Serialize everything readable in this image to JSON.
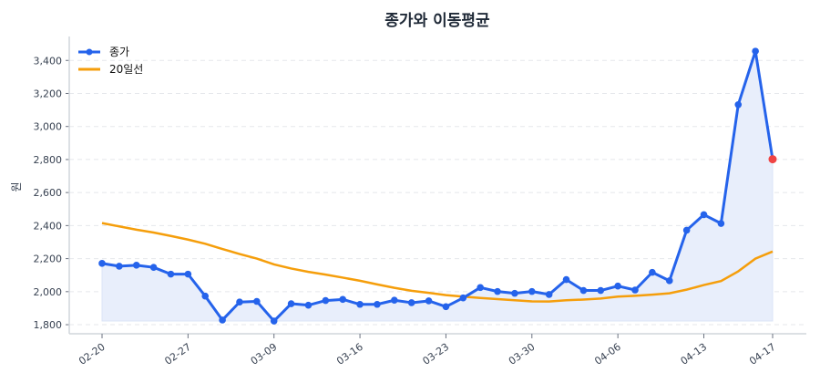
{
  "chart_data": {
    "type": "line",
    "title": "종가와 이동평균",
    "ylabel": "원",
    "xlabel": "",
    "ylim": [
      1745,
      3545
    ],
    "yticks": [
      1800,
      2000,
      2200,
      2400,
      2600,
      2800,
      3000,
      3200,
      3400
    ],
    "ytick_labels": [
      "1,800",
      "2,000",
      "2,200",
      "2,400",
      "2,600",
      "2,800",
      "3,000",
      "3,200",
      "3,400"
    ],
    "xtick_labels": [
      "02-20",
      "02-27",
      "03-09",
      "03-16",
      "03-23",
      "03-30",
      "04-06",
      "04-13",
      "04-17"
    ],
    "x": [
      "02-20",
      "02-23",
      "02-24",
      "02-25",
      "02-26",
      "02-27",
      "03-03",
      "03-04",
      "03-05",
      "03-06",
      "03-09",
      "03-10",
      "03-11",
      "03-12",
      "03-13",
      "03-16",
      "03-17",
      "03-18",
      "03-19",
      "03-20",
      "03-23",
      "03-24",
      "03-25",
      "03-26",
      "03-27",
      "03-30",
      "03-31",
      "04-01",
      "04-02",
      "04-03",
      "04-06",
      "04-07",
      "04-08",
      "04-09",
      "04-10",
      "04-13",
      "04-14",
      "04-15",
      "04-16",
      "04-17"
    ],
    "grid": "horizontal dashed",
    "legend": "top-left",
    "series": [
      {
        "name": "종가",
        "color": "#2563eb",
        "marker": "circle",
        "fill": "#e8eefb",
        "last_point_color": "#ef4444",
        "values": [
          2171,
          2154,
          2160,
          2147,
          2106,
          2106,
          1973,
          1828,
          1937,
          1941,
          1822,
          1927,
          1918,
          1946,
          1953,
          1923,
          1923,
          1948,
          1933,
          1944,
          1909,
          1962,
          2025,
          2001,
          1990,
          2001,
          1983,
          2073,
          2007,
          2007,
          2034,
          2010,
          2117,
          2066,
          2372,
          2466,
          2413,
          3132,
          3456,
          2802
        ]
      },
      {
        "name": "20일선",
        "color": "#f59e0b",
        "values": [
          2415,
          2395,
          2375,
          2358,
          2337,
          2315,
          2290,
          2258,
          2228,
          2200,
          2165,
          2140,
          2120,
          2103,
          2085,
          2066,
          2044,
          2023,
          2005,
          1993,
          1979,
          1970,
          1962,
          1955,
          1948,
          1941,
          1940,
          1948,
          1952,
          1958,
          1970,
          1975,
          1982,
          1990,
          2012,
          2040,
          2064,
          2123,
          2200,
          2243
        ]
      }
    ]
  }
}
